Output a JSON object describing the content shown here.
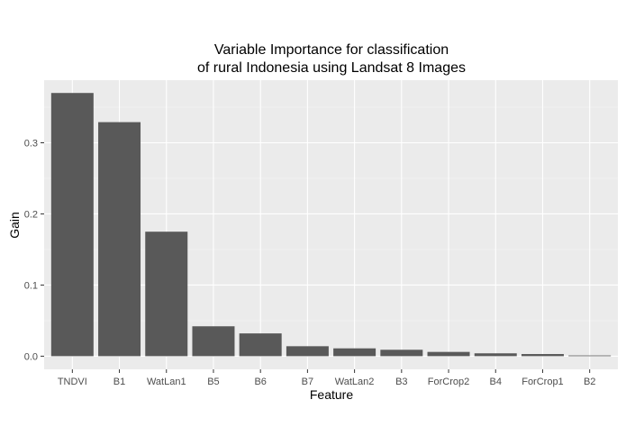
{
  "chart_data": {
    "type": "bar",
    "title_lines": [
      "Variable Importance for classification",
      "of rural Indonesia using Landsat 8 Images"
    ],
    "xlabel": "Feature",
    "ylabel": "Gain",
    "categories": [
      "TNDVI",
      "B1",
      "WatLan1",
      "B5",
      "B6",
      "B7",
      "WatLan2",
      "B3",
      "ForCrop2",
      "B4",
      "ForCrop1",
      "B2"
    ],
    "values": [
      0.37,
      0.329,
      0.175,
      0.042,
      0.032,
      0.014,
      0.011,
      0.009,
      0.006,
      0.004,
      0.003,
      0.001
    ],
    "yticks": [
      0.0,
      0.1,
      0.2,
      0.3
    ],
    "ytick_labels": [
      "0.0",
      "0.1",
      "0.2",
      "0.3"
    ],
    "ylim": [
      -0.0185,
      0.388
    ],
    "grid": true,
    "colors": {
      "bar": "#595959",
      "panel": "#ebebeb",
      "grid_major": "#ffffff"
    }
  }
}
